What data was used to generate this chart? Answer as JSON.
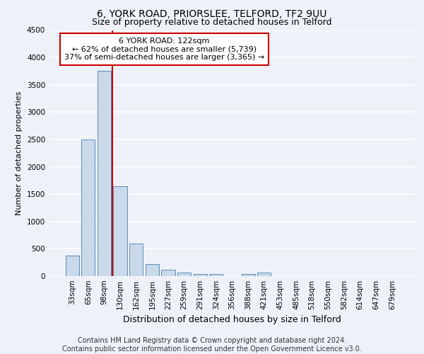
{
  "title1": "6, YORK ROAD, PRIORSLEE, TELFORD, TF2 9UU",
  "title2": "Size of property relative to detached houses in Telford",
  "xlabel": "Distribution of detached houses by size in Telford",
  "ylabel": "Number of detached properties",
  "categories": [
    "33sqm",
    "65sqm",
    "98sqm",
    "130sqm",
    "162sqm",
    "195sqm",
    "227sqm",
    "259sqm",
    "291sqm",
    "324sqm",
    "356sqm",
    "388sqm",
    "421sqm",
    "453sqm",
    "485sqm",
    "518sqm",
    "550sqm",
    "582sqm",
    "614sqm",
    "647sqm",
    "679sqm"
  ],
  "values": [
    370,
    2500,
    3750,
    1650,
    600,
    220,
    115,
    60,
    35,
    35,
    0,
    35,
    60,
    0,
    0,
    0,
    0,
    0,
    0,
    0,
    0
  ],
  "bar_color": "#c9d9ea",
  "bar_edge_color": "#5b8db8",
  "vline_color": "#cc0000",
  "ylim": [
    0,
    4500
  ],
  "yticks": [
    0,
    500,
    1000,
    1500,
    2000,
    2500,
    3000,
    3500,
    4000,
    4500
  ],
  "annotation_line1": "6 YORK ROAD: 122sqm",
  "annotation_line2": "← 62% of detached houses are smaller (5,739)",
  "annotation_line3": "37% of semi-detached houses are larger (3,365) →",
  "annotation_box_color": "#ffffff",
  "annotation_box_edge_color": "#cc0000",
  "footer_text": "Contains HM Land Registry data © Crown copyright and database right 2024.\nContains public sector information licensed under the Open Government Licence v3.0.",
  "bg_color": "#eef2f8",
  "plot_bg_color": "#eef2f8",
  "grid_color": "#ffffff",
  "title1_fontsize": 10,
  "title2_fontsize": 9,
  "xlabel_fontsize": 9,
  "ylabel_fontsize": 8,
  "tick_fontsize": 7.5,
  "annotation_fontsize": 8,
  "footer_fontsize": 7
}
